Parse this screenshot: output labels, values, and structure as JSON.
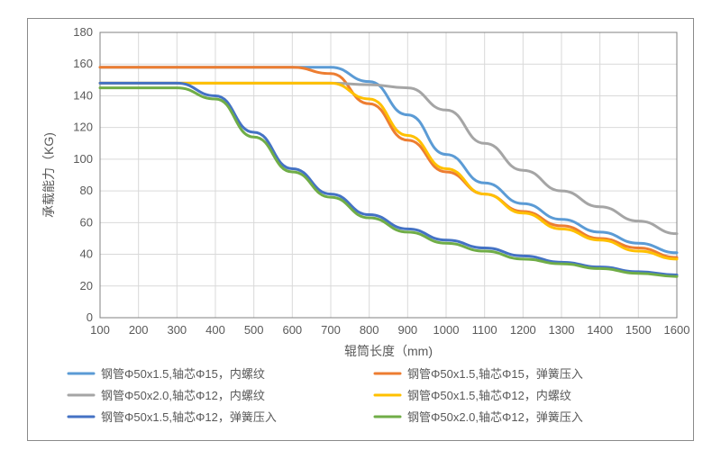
{
  "chart": {
    "type": "line",
    "background_color": "#ffffff",
    "plot_border_color": "#808080",
    "grid_color": "#d9d9d9",
    "axis_font_size": 13,
    "axis_font_color": "#595959",
    "axis_title_font_size": 14,
    "axis_title_font_color": "#595959",
    "xlabel": "辊筒长度（mm)",
    "ylabel": "承载能力（KG)",
    "xticks": [
      100,
      200,
      300,
      400,
      500,
      600,
      700,
      800,
      900,
      1000,
      1100,
      1200,
      1300,
      1400,
      1500,
      1600
    ],
    "ylim": [
      0,
      180
    ],
    "ytick_step": 20,
    "line_width": 3,
    "legend_font_size": 13,
    "legend_font_color": "#595959",
    "legend_marker_width": 28,
    "legend_marker_thickness": 3,
    "series": [
      {
        "name": "钢管Φ50x1.5,轴芯Φ15，内螺纹",
        "color": "#5b9bd5",
        "y": [
          158,
          158,
          158,
          158,
          158,
          158,
          158,
          149,
          128,
          103,
          85,
          72,
          62,
          54,
          47,
          41
        ]
      },
      {
        "name": "钢管Φ50x1.5,轴芯Φ15，弹簧压入",
        "color": "#ed7d31",
        "y": [
          158,
          158,
          158,
          158,
          158,
          158,
          154,
          135,
          112,
          92,
          78,
          67,
          58,
          50,
          44,
          38
        ]
      },
      {
        "name": "钢管Φ50x2.0,轴芯Φ12，内螺纹",
        "color": "#a5a5a5",
        "y": [
          148,
          148,
          148,
          148,
          148,
          148,
          148,
          147,
          145,
          131,
          110,
          93,
          80,
          70,
          61,
          53
        ]
      },
      {
        "name": "钢管Φ50x1.5,轴芯Φ12，内螺纹",
        "color": "#ffc000",
        "y": [
          148,
          148,
          148,
          148,
          148,
          148,
          148,
          138,
          115,
          94,
          78,
          66,
          56,
          49,
          42,
          37
        ]
      },
      {
        "name": "钢管Φ50x1.5,轴芯Φ12，弹簧压入",
        "color": "#4472c4",
        "y": [
          148,
          148,
          148,
          140,
          117,
          94,
          78,
          65,
          56,
          49,
          44,
          39,
          35,
          32,
          29,
          27
        ]
      },
      {
        "name": "钢管Φ50x2.0,轴芯Φ12，弹簧压入",
        "color": "#70ad47",
        "y": [
          145,
          145,
          145,
          138,
          114,
          92,
          76,
          63,
          54,
          47,
          42,
          37,
          34,
          31,
          28,
          26
        ]
      }
    ]
  }
}
